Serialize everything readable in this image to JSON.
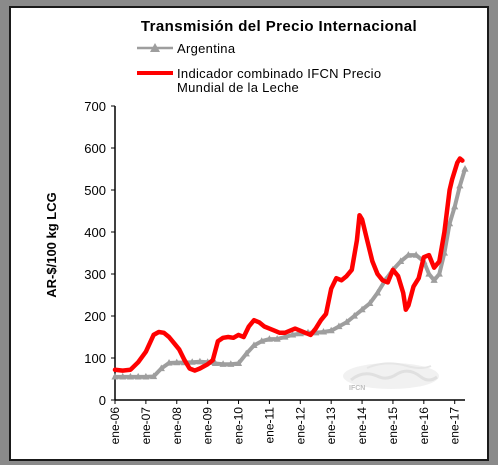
{
  "chart_data": {
    "type": "line",
    "title": "Transmisión del Precio Internacional",
    "ylabel": "AR-$/100 kg LCG",
    "xlabel": "",
    "ylim": [
      0,
      700
    ],
    "yticks": [
      0,
      100,
      200,
      300,
      400,
      500,
      600,
      700
    ],
    "x_tick_labels": [
      "ene-06",
      "ene-07",
      "ene-08",
      "ene-09",
      "ene-10",
      "ene-11",
      "ene-12",
      "ene-13",
      "ene-14",
      "ene-15",
      "ene-16",
      "ene-17"
    ],
    "x_range": [
      0,
      136
    ],
    "grid": false,
    "legend_position": "top",
    "watermark_text": "IFCN",
    "series": [
      {
        "name": "Argentina",
        "color": "#9e9e9e",
        "marker": "triangle",
        "points": [
          [
            0,
            55
          ],
          [
            3,
            55
          ],
          [
            6,
            55
          ],
          [
            9,
            55
          ],
          [
            12,
            55
          ],
          [
            15,
            56
          ],
          [
            18,
            75
          ],
          [
            21,
            88
          ],
          [
            24,
            89
          ],
          [
            27,
            89
          ],
          [
            30,
            90
          ],
          [
            33,
            91
          ],
          [
            36,
            90
          ],
          [
            39,
            87
          ],
          [
            42,
            85
          ],
          [
            45,
            85
          ],
          [
            48,
            87
          ],
          [
            51,
            110
          ],
          [
            54,
            130
          ],
          [
            57,
            140
          ],
          [
            60,
            145
          ],
          [
            63,
            145
          ],
          [
            66,
            150
          ],
          [
            69,
            155
          ],
          [
            72,
            158
          ],
          [
            75,
            160
          ],
          [
            78,
            160
          ],
          [
            81,
            162
          ],
          [
            84,
            165
          ],
          [
            87,
            175
          ],
          [
            90,
            185
          ],
          [
            93,
            200
          ],
          [
            96,
            215
          ],
          [
            99,
            230
          ],
          [
            102,
            255
          ],
          [
            105,
            285
          ],
          [
            108,
            310
          ],
          [
            111,
            330
          ],
          [
            114,
            345
          ],
          [
            117,
            345
          ],
          [
            120,
            330
          ],
          [
            122,
            300
          ],
          [
            124,
            285
          ],
          [
            126,
            300
          ],
          [
            128,
            350
          ],
          [
            130,
            420
          ],
          [
            132,
            460
          ],
          [
            134,
            510
          ],
          [
            136,
            550
          ]
        ]
      },
      {
        "name": "Indicador combinado IFCN Precio Mundial de la Leche",
        "color": "#ff0000",
        "marker": "none",
        "points": [
          [
            0,
            72
          ],
          [
            3,
            70
          ],
          [
            6,
            72
          ],
          [
            9,
            90
          ],
          [
            12,
            115
          ],
          [
            15,
            155
          ],
          [
            17,
            162
          ],
          [
            19,
            160
          ],
          [
            21,
            150
          ],
          [
            23,
            135
          ],
          [
            25,
            120
          ],
          [
            27,
            95
          ],
          [
            29,
            75
          ],
          [
            31,
            70
          ],
          [
            33,
            75
          ],
          [
            36,
            85
          ],
          [
            38,
            95
          ],
          [
            40,
            140
          ],
          [
            42,
            148
          ],
          [
            44,
            150
          ],
          [
            46,
            148
          ],
          [
            48,
            155
          ],
          [
            50,
            150
          ],
          [
            52,
            175
          ],
          [
            54,
            190
          ],
          [
            56,
            185
          ],
          [
            58,
            175
          ],
          [
            60,
            170
          ],
          [
            62,
            165
          ],
          [
            64,
            160
          ],
          [
            66,
            160
          ],
          [
            68,
            165
          ],
          [
            70,
            170
          ],
          [
            72,
            165
          ],
          [
            74,
            160
          ],
          [
            76,
            155
          ],
          [
            78,
            170
          ],
          [
            80,
            190
          ],
          [
            82,
            205
          ],
          [
            84,
            265
          ],
          [
            86,
            290
          ],
          [
            88,
            285
          ],
          [
            90,
            295
          ],
          [
            92,
            310
          ],
          [
            94,
            380
          ],
          [
            95,
            440
          ],
          [
            96,
            430
          ],
          [
            98,
            380
          ],
          [
            100,
            330
          ],
          [
            102,
            300
          ],
          [
            104,
            285
          ],
          [
            106,
            280
          ],
          [
            108,
            310
          ],
          [
            110,
            295
          ],
          [
            112,
            255
          ],
          [
            113,
            215
          ],
          [
            114,
            225
          ],
          [
            116,
            270
          ],
          [
            118,
            290
          ],
          [
            120,
            340
          ],
          [
            122,
            345
          ],
          [
            124,
            315
          ],
          [
            126,
            330
          ],
          [
            128,
            400
          ],
          [
            130,
            500
          ],
          [
            131,
            525
          ],
          [
            132,
            545
          ],
          [
            133,
            565
          ],
          [
            134,
            575
          ],
          [
            135,
            570
          ]
        ]
      }
    ]
  }
}
